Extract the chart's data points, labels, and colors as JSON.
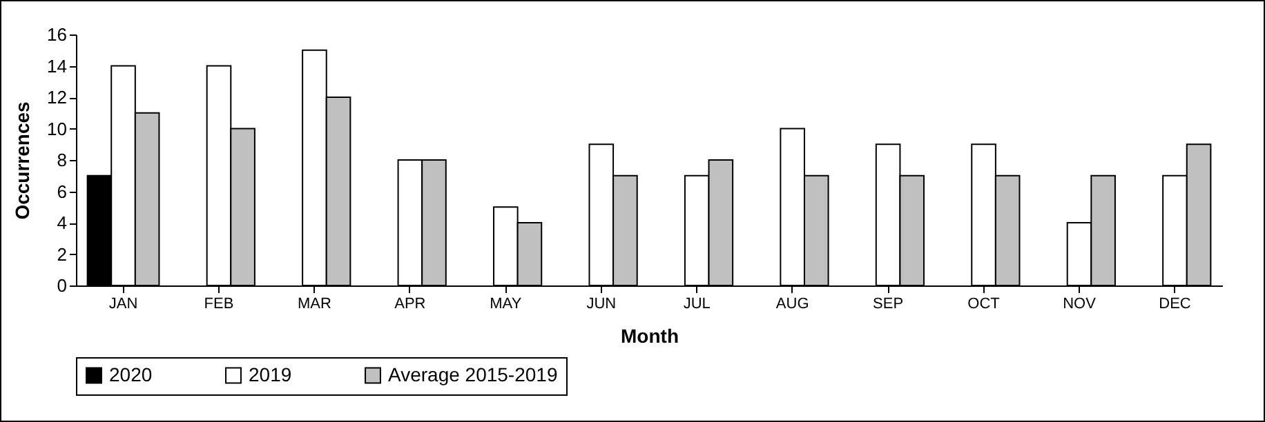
{
  "chart_data": {
    "type": "bar",
    "xlabel": "Month",
    "ylabel": "Occurrences",
    "categories": [
      "JAN",
      "FEB",
      "MAR",
      "APR",
      "MAY",
      "JUN",
      "JUL",
      "AUG",
      "SEP",
      "OCT",
      "NOV",
      "DEC"
    ],
    "series": [
      {
        "name": "2020",
        "color": "#000000",
        "values": [
          7,
          null,
          null,
          null,
          null,
          null,
          null,
          null,
          null,
          null,
          null,
          null
        ]
      },
      {
        "name": "2019",
        "color": "#ffffff",
        "values": [
          14,
          14,
          15,
          8,
          5,
          9,
          7,
          10,
          9,
          9,
          4,
          7
        ]
      },
      {
        "name": "Average 2015-2019",
        "color": "#c0c0c0",
        "values": [
          11,
          10,
          12,
          8,
          4,
          7,
          8,
          7,
          7,
          7,
          7,
          9
        ]
      }
    ],
    "ylim": [
      0,
      16
    ],
    "yticks": [
      0,
      2,
      4,
      6,
      8,
      10,
      12,
      14,
      16
    ],
    "grid": false,
    "legend": "bottom"
  }
}
